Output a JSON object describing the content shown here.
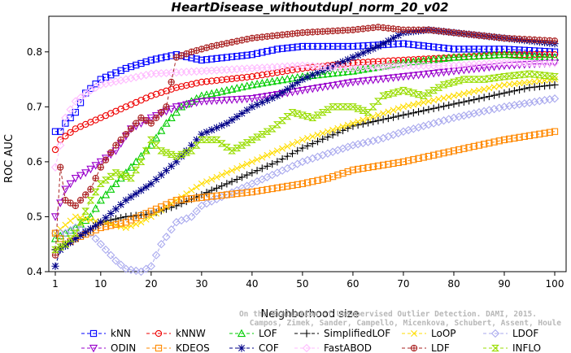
{
  "chart_data": {
    "type": "line",
    "title": "HeartDisease_withoutdupl_norm_20_v02",
    "xlabel": "Neighborhood size",
    "ylabel": "ROC AUC",
    "xlim": [
      1,
      100
    ],
    "ylim": [
      0.4,
      0.85
    ],
    "xticks": [
      1,
      10,
      20,
      30,
      40,
      50,
      60,
      70,
      80,
      90,
      100
    ],
    "yticks": [
      0.4,
      0.5,
      0.6,
      0.7,
      0.8
    ],
    "ytick_labels": [
      "0.4",
      "0.5",
      "0.6",
      "0.7",
      "0.8"
    ],
    "grid": false,
    "legend_position": "bottom",
    "annotation": {
      "line1": "Campos, Zimek, Sander, Campello, Micenkova, Schubert, Assent, Houle",
      "line2": "On the Evaluation of Unsupervised Outlier Detection. DAMI, 2015."
    },
    "series": [
      {
        "name": "kNN",
        "color": "#0000ff",
        "marker": "square",
        "points": [
          [
            1,
            0.655
          ],
          [
            2,
            0.655
          ],
          [
            3,
            0.67
          ],
          [
            5,
            0.69
          ],
          [
            7,
            0.725
          ],
          [
            10,
            0.75
          ],
          [
            15,
            0.77
          ],
          [
            20,
            0.785
          ],
          [
            25,
            0.795
          ],
          [
            30,
            0.785
          ],
          [
            35,
            0.79
          ],
          [
            40,
            0.795
          ],
          [
            45,
            0.805
          ],
          [
            50,
            0.81
          ],
          [
            60,
            0.81
          ],
          [
            70,
            0.815
          ],
          [
            80,
            0.805
          ],
          [
            90,
            0.805
          ],
          [
            100,
            0.8
          ]
        ]
      },
      {
        "name": "kNNW",
        "color": "#ee0000",
        "marker": "circle",
        "points": [
          [
            1,
            0.622
          ],
          [
            2,
            0.64
          ],
          [
            5,
            0.66
          ],
          [
            10,
            0.68
          ],
          [
            15,
            0.7
          ],
          [
            20,
            0.72
          ],
          [
            25,
            0.735
          ],
          [
            30,
            0.745
          ],
          [
            40,
            0.755
          ],
          [
            50,
            0.77
          ],
          [
            60,
            0.78
          ],
          [
            70,
            0.785
          ],
          [
            80,
            0.79
          ],
          [
            90,
            0.795
          ],
          [
            100,
            0.795
          ]
        ]
      },
      {
        "name": "LOF",
        "color": "#00cc00",
        "marker": "triangle",
        "points": [
          [
            1,
            0.46
          ],
          [
            3,
            0.47
          ],
          [
            5,
            0.48
          ],
          [
            8,
            0.5
          ],
          [
            10,
            0.53
          ],
          [
            13,
            0.56
          ],
          [
            17,
            0.6
          ],
          [
            20,
            0.63
          ],
          [
            23,
            0.67
          ],
          [
            26,
            0.7
          ],
          [
            30,
            0.72
          ],
          [
            35,
            0.73
          ],
          [
            40,
            0.74
          ],
          [
            50,
            0.755
          ],
          [
            60,
            0.765
          ],
          [
            70,
            0.78
          ],
          [
            80,
            0.79
          ],
          [
            90,
            0.795
          ],
          [
            100,
            0.79
          ]
        ]
      },
      {
        "name": "SimplifiedLOF",
        "color": "#000000",
        "marker": "plus",
        "points": [
          [
            1,
            0.44
          ],
          [
            3,
            0.45
          ],
          [
            5,
            0.46
          ],
          [
            8,
            0.475
          ],
          [
            10,
            0.49
          ],
          [
            15,
            0.5
          ],
          [
            20,
            0.505
          ],
          [
            25,
            0.52
          ],
          [
            30,
            0.54
          ],
          [
            35,
            0.56
          ],
          [
            40,
            0.58
          ],
          [
            45,
            0.6
          ],
          [
            50,
            0.625
          ],
          [
            55,
            0.645
          ],
          [
            60,
            0.665
          ],
          [
            65,
            0.675
          ],
          [
            70,
            0.685
          ],
          [
            75,
            0.695
          ],
          [
            80,
            0.705
          ],
          [
            85,
            0.715
          ],
          [
            90,
            0.725
          ],
          [
            95,
            0.735
          ],
          [
            100,
            0.74
          ]
        ]
      },
      {
        "name": "LoOP",
        "color": "#ffdd00",
        "marker": "x",
        "points": [
          [
            1,
            0.47
          ],
          [
            5,
            0.5
          ],
          [
            10,
            0.49
          ],
          [
            15,
            0.48
          ],
          [
            18,
            0.49
          ],
          [
            20,
            0.5
          ],
          [
            25,
            0.53
          ],
          [
            30,
            0.56
          ],
          [
            35,
            0.58
          ],
          [
            40,
            0.6
          ],
          [
            45,
            0.62
          ],
          [
            50,
            0.64
          ],
          [
            60,
            0.67
          ],
          [
            70,
            0.7
          ],
          [
            80,
            0.72
          ],
          [
            90,
            0.74
          ],
          [
            100,
            0.75
          ]
        ]
      },
      {
        "name": "LDOF",
        "color": "#aaaaee",
        "marker": "diamond",
        "points": [
          [
            1,
            0.47
          ],
          [
            3,
            0.47
          ],
          [
            5,
            0.48
          ],
          [
            8,
            0.47
          ],
          [
            10,
            0.45
          ],
          [
            13,
            0.42
          ],
          [
            15,
            0.405
          ],
          [
            18,
            0.4
          ],
          [
            20,
            0.41
          ],
          [
            22,
            0.45
          ],
          [
            25,
            0.49
          ],
          [
            28,
            0.5
          ],
          [
            30,
            0.52
          ],
          [
            35,
            0.54
          ],
          [
            40,
            0.56
          ],
          [
            45,
            0.58
          ],
          [
            50,
            0.6
          ],
          [
            55,
            0.615
          ],
          [
            60,
            0.63
          ],
          [
            65,
            0.64
          ],
          [
            70,
            0.655
          ],
          [
            80,
            0.68
          ],
          [
            90,
            0.7
          ],
          [
            100,
            0.715
          ]
        ]
      },
      {
        "name": "ODIN",
        "color": "#9900cc",
        "marker": "triangle-down",
        "points": [
          [
            1,
            0.5
          ],
          [
            3,
            0.55
          ],
          [
            5,
            0.57
          ],
          [
            7,
            0.58
          ],
          [
            10,
            0.6
          ],
          [
            13,
            0.62
          ],
          [
            16,
            0.66
          ],
          [
            20,
            0.68
          ],
          [
            25,
            0.7
          ],
          [
            30,
            0.71
          ],
          [
            40,
            0.715
          ],
          [
            50,
            0.73
          ],
          [
            60,
            0.745
          ],
          [
            70,
            0.755
          ],
          [
            80,
            0.765
          ],
          [
            90,
            0.775
          ],
          [
            100,
            0.78
          ]
        ]
      },
      {
        "name": "KDEOS",
        "color": "#ff8800",
        "marker": "square",
        "points": [
          [
            1,
            0.47
          ],
          [
            3,
            0.45
          ],
          [
            5,
            0.46
          ],
          [
            10,
            0.48
          ],
          [
            15,
            0.49
          ],
          [
            20,
            0.51
          ],
          [
            25,
            0.53
          ],
          [
            30,
            0.535
          ],
          [
            40,
            0.545
          ],
          [
            50,
            0.56
          ],
          [
            55,
            0.57
          ],
          [
            60,
            0.585
          ],
          [
            70,
            0.6
          ],
          [
            80,
            0.62
          ],
          [
            90,
            0.64
          ],
          [
            100,
            0.655
          ]
        ]
      },
      {
        "name": "COF",
        "color": "#000088",
        "marker": "star",
        "points": [
          [
            1,
            0.41
          ],
          [
            2,
            0.44
          ],
          [
            5,
            0.46
          ],
          [
            10,
            0.49
          ],
          [
            15,
            0.53
          ],
          [
            20,
            0.56
          ],
          [
            25,
            0.6
          ],
          [
            30,
            0.65
          ],
          [
            35,
            0.67
          ],
          [
            40,
            0.7
          ],
          [
            45,
            0.72
          ],
          [
            50,
            0.75
          ],
          [
            55,
            0.77
          ],
          [
            60,
            0.79
          ],
          [
            65,
            0.81
          ],
          [
            70,
            0.835
          ],
          [
            75,
            0.84
          ],
          [
            80,
            0.835
          ],
          [
            85,
            0.83
          ],
          [
            90,
            0.825
          ],
          [
            95,
            0.82
          ],
          [
            100,
            0.815
          ]
        ]
      },
      {
        "name": "FastABOD",
        "color": "#ffbbff",
        "marker": "diamond",
        "points": [
          [
            1,
            0.59
          ],
          [
            2,
            0.63
          ],
          [
            3,
            0.68
          ],
          [
            5,
            0.71
          ],
          [
            8,
            0.73
          ],
          [
            10,
            0.74
          ],
          [
            15,
            0.75
          ],
          [
            20,
            0.76
          ],
          [
            30,
            0.765
          ],
          [
            40,
            0.77
          ],
          [
            50,
            0.775
          ],
          [
            60,
            0.77
          ],
          [
            70,
            0.775
          ],
          [
            80,
            0.775
          ],
          [
            90,
            0.78
          ],
          [
            100,
            0.78
          ]
        ]
      },
      {
        "name": "LDF",
        "color": "#aa2222",
        "marker": "circle-plus",
        "points": [
          [
            1,
            0.43
          ],
          [
            2,
            0.59
          ],
          [
            3,
            0.53
          ],
          [
            5,
            0.52
          ],
          [
            8,
            0.55
          ],
          [
            10,
            0.59
          ],
          [
            13,
            0.63
          ],
          [
            16,
            0.66
          ],
          [
            18,
            0.68
          ],
          [
            20,
            0.67
          ],
          [
            23,
            0.7
          ],
          [
            25,
            0.79
          ],
          [
            28,
            0.8
          ],
          [
            32,
            0.81
          ],
          [
            40,
            0.825
          ],
          [
            50,
            0.835
          ],
          [
            60,
            0.84
          ],
          [
            65,
            0.845
          ],
          [
            70,
            0.84
          ],
          [
            75,
            0.84
          ],
          [
            80,
            0.835
          ],
          [
            90,
            0.825
          ],
          [
            100,
            0.82
          ]
        ]
      },
      {
        "name": "INFLO",
        "color": "#99dd00",
        "marker": "hourglass",
        "points": [
          [
            1,
            0.44
          ],
          [
            3,
            0.45
          ],
          [
            5,
            0.47
          ],
          [
            8,
            0.53
          ],
          [
            10,
            0.56
          ],
          [
            13,
            0.58
          ],
          [
            16,
            0.57
          ],
          [
            18,
            0.6
          ],
          [
            20,
            0.64
          ],
          [
            22,
            0.62
          ],
          [
            25,
            0.61
          ],
          [
            28,
            0.62
          ],
          [
            30,
            0.64
          ],
          [
            33,
            0.64
          ],
          [
            36,
            0.62
          ],
          [
            40,
            0.64
          ],
          [
            44,
            0.66
          ],
          [
            48,
            0.69
          ],
          [
            52,
            0.68
          ],
          [
            56,
            0.7
          ],
          [
            60,
            0.7
          ],
          [
            63,
            0.69
          ],
          [
            66,
            0.72
          ],
          [
            70,
            0.73
          ],
          [
            74,
            0.72
          ],
          [
            78,
            0.74
          ],
          [
            82,
            0.75
          ],
          [
            86,
            0.75
          ],
          [
            90,
            0.755
          ],
          [
            95,
            0.76
          ],
          [
            100,
            0.755
          ]
        ]
      }
    ]
  }
}
